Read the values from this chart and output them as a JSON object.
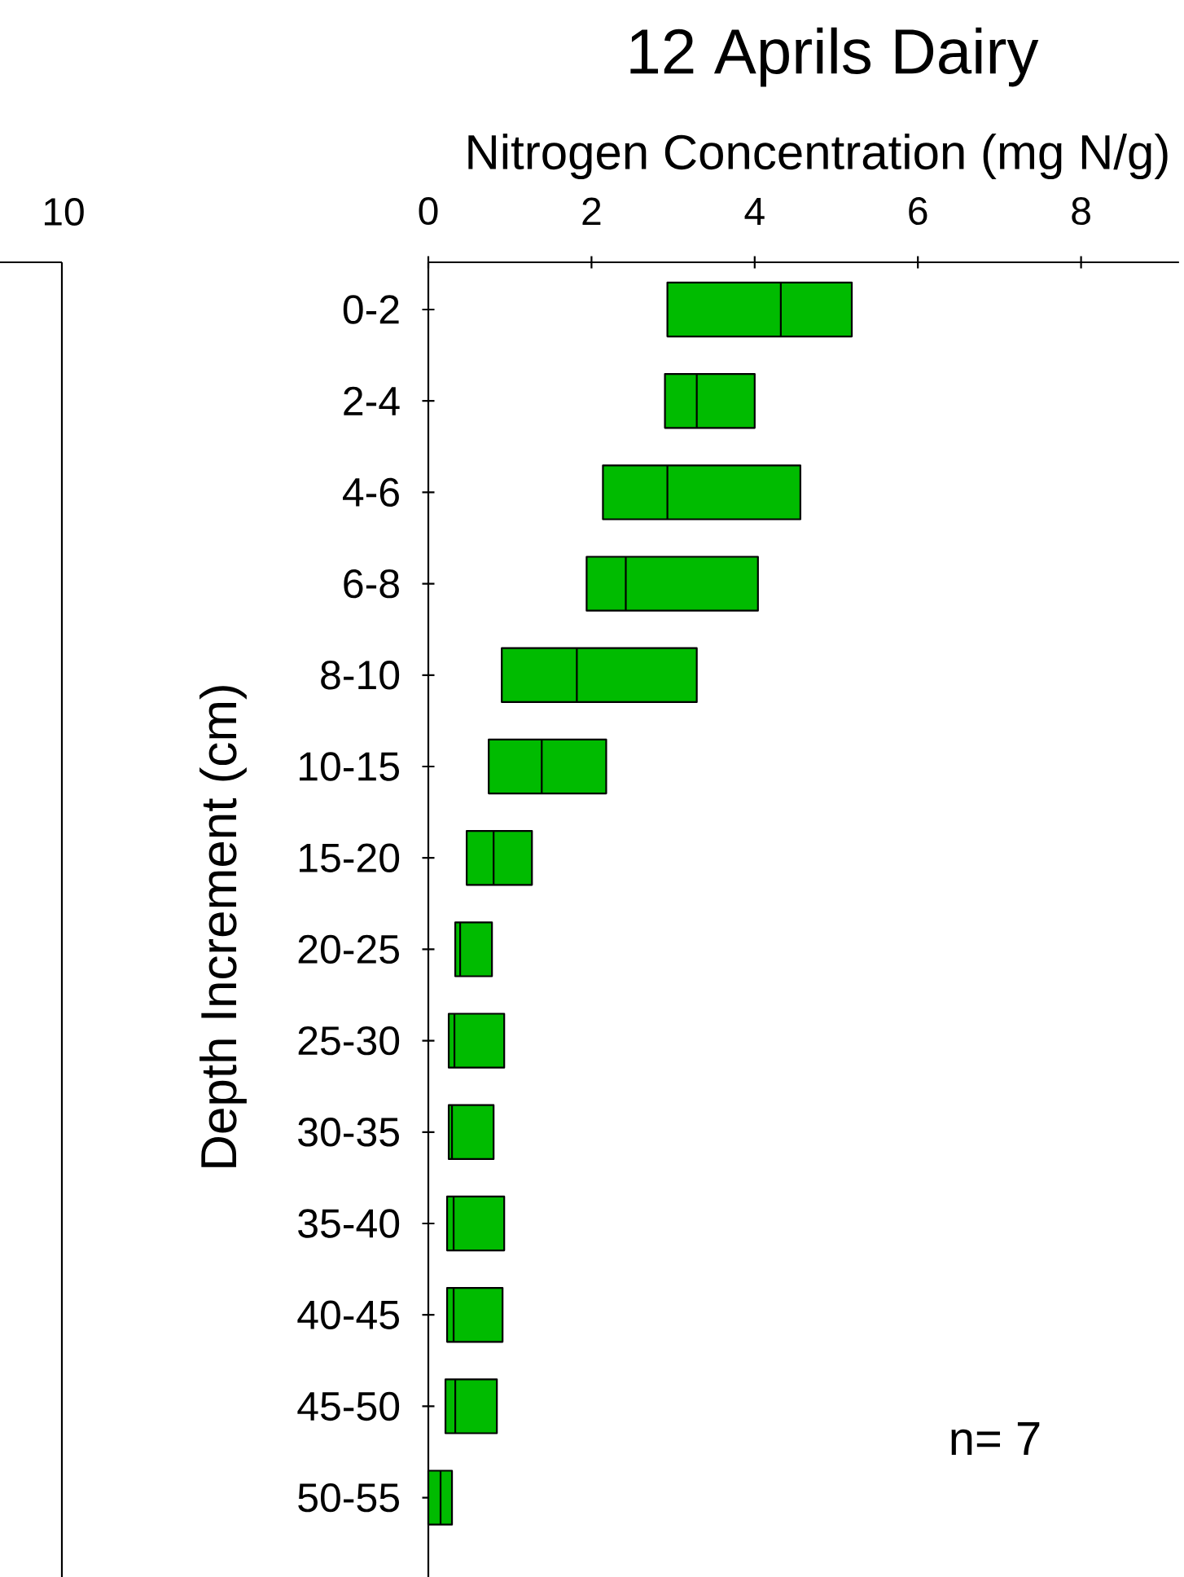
{
  "chart_data": [
    {
      "type": "box",
      "title": "12 Aprils Dairy",
      "xlabel": "Nitrogen Concentration (mg N/g)",
      "ylabel": "Depth Increment (cm)",
      "orientation": "horizontal",
      "color": "#00bb00",
      "categories": [
        "0-2",
        "2-4",
        "4-6",
        "6-8",
        "8-10",
        "10-15",
        "15-20",
        "20-25",
        "25-30",
        "30-35",
        "35-40",
        "40-45",
        "45-50",
        "50-55"
      ],
      "xlim": [
        0,
        9.2
      ],
      "xticks": [
        0,
        2,
        4,
        6,
        8
      ],
      "boxes": [
        {
          "low": 2.93,
          "q1": 2.93,
          "median": 4.32,
          "q3": 5.19,
          "high": 5.19
        },
        {
          "low": 2.9,
          "q1": 2.9,
          "median": 3.29,
          "q3": 4.0,
          "high": 4.0
        },
        {
          "low": 2.14,
          "q1": 2.14,
          "median": 2.93,
          "q3": 4.56,
          "high": 4.56
        },
        {
          "low": 1.94,
          "q1": 1.94,
          "median": 2.42,
          "q3": 4.04,
          "high": 4.04
        },
        {
          "low": 0.9,
          "q1": 0.9,
          "median": 1.82,
          "q3": 3.29,
          "high": 3.29
        },
        {
          "low": 0.74,
          "q1": 0.74,
          "median": 1.39,
          "q3": 2.18,
          "high": 2.18
        },
        {
          "low": 0.47,
          "q1": 0.47,
          "median": 0.8,
          "q3": 1.27,
          "high": 1.27
        },
        {
          "low": 0.33,
          "q1": 0.33,
          "median": 0.39,
          "q3": 0.78,
          "high": 0.78
        },
        {
          "low": 0.25,
          "q1": 0.25,
          "median": 0.32,
          "q3": 0.93,
          "high": 0.93
        },
        {
          "low": 0.25,
          "q1": 0.25,
          "median": 0.29,
          "q3": 0.8,
          "high": 0.8
        },
        {
          "low": 0.23,
          "q1": 0.23,
          "median": 0.31,
          "q3": 0.93,
          "high": 0.93
        },
        {
          "low": 0.23,
          "q1": 0.23,
          "median": 0.31,
          "q3": 0.91,
          "high": 0.91
        },
        {
          "low": 0.21,
          "q1": 0.21,
          "median": 0.33,
          "q3": 0.84,
          "high": 0.84
        },
        {
          "low": 0.0,
          "q1": 0.0,
          "median": 0.15,
          "q3": 0.29,
          "high": 0.29
        }
      ],
      "annotations": [
        "n= 7"
      ]
    },
    {
      "type": "other",
      "annotations": [
        "10"
      ]
    }
  ]
}
